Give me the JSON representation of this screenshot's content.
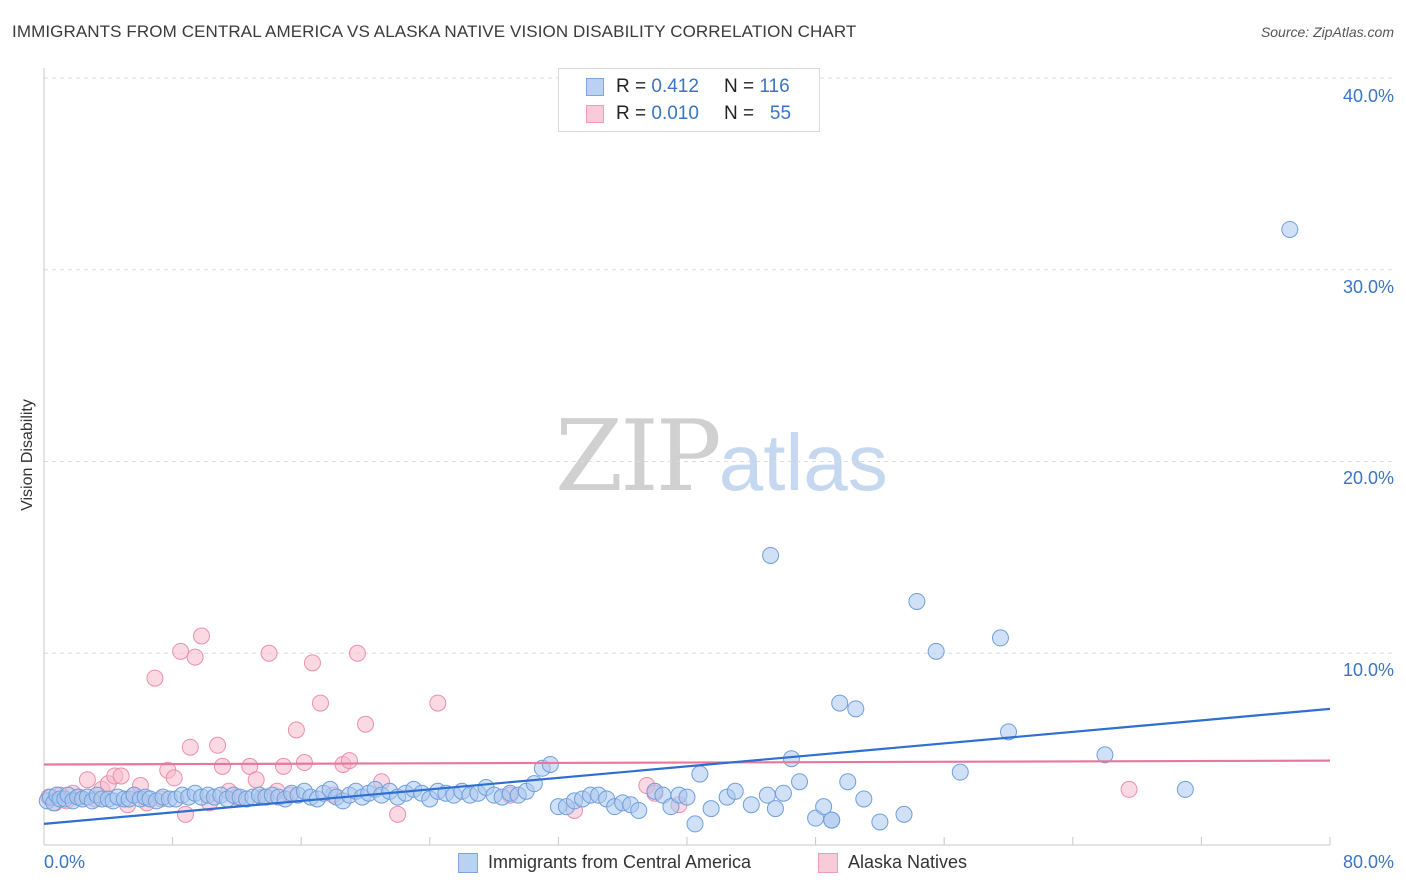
{
  "title": "IMMIGRANTS FROM CENTRAL AMERICA VS ALASKA NATIVE VISION DISABILITY CORRELATION CHART",
  "source": "Source: ZipAtlas.com",
  "watermark": {
    "zip": "ZIP",
    "atlas": "atlas"
  },
  "stats": {
    "row1": {
      "r_label": "R =",
      "r_value": "0.412",
      "n_label": "N =",
      "n_value": "116"
    },
    "row2": {
      "r_label": "R =",
      "r_value": "0.010",
      "n_label": "N =",
      "n_value": "55"
    }
  },
  "legend": {
    "blue": "Immigrants from Central America",
    "pink": "Alaska Natives"
  },
  "colors": {
    "blue_fill": "#a9c6ef",
    "blue_stroke": "#6f9fdc",
    "blue_line": "#2f6fd0",
    "pink_fill": "#f6b9cc",
    "pink_stroke": "#ec8fae",
    "pink_line": "#e8779e",
    "tick_text": "#3a74c4",
    "grid": "#dcdcdc"
  },
  "chart_data": {
    "type": "scatter",
    "xlabel": "",
    "ylabel": "Vision Disability",
    "xlim": [
      0,
      80
    ],
    "ylim": [
      0,
      40
    ],
    "x_tick_labels": [
      "0.0%",
      "80.0%"
    ],
    "y_ticks": [
      10,
      20,
      30,
      40
    ],
    "y_tick_labels": [
      "10.0%",
      "20.0%",
      "30.0%",
      "40.0%"
    ],
    "grid": true,
    "legend_position": "bottom",
    "series": [
      {
        "name": "Immigrants from Central America",
        "color": "#a9c6ef",
        "r": 0.412,
        "n": 116,
        "trend": [
          [
            0,
            1.1
          ],
          [
            80,
            7.1
          ]
        ],
        "points": [
          [
            0.2,
            2.3
          ],
          [
            0.4,
            2.5
          ],
          [
            0.6,
            2.2
          ],
          [
            0.8,
            2.6
          ],
          [
            1.0,
            2.4
          ],
          [
            1.3,
            2.4
          ],
          [
            1.5,
            2.6
          ],
          [
            1.8,
            2.3
          ],
          [
            2.1,
            2.5
          ],
          [
            2.4,
            2.4
          ],
          [
            2.7,
            2.5
          ],
          [
            3.0,
            2.3
          ],
          [
            3.3,
            2.6
          ],
          [
            3.6,
            2.4
          ],
          [
            4.0,
            2.4
          ],
          [
            4.3,
            2.3
          ],
          [
            4.6,
            2.5
          ],
          [
            5.0,
            2.4
          ],
          [
            5.3,
            2.4
          ],
          [
            5.6,
            2.6
          ],
          [
            6.0,
            2.4
          ],
          [
            6.3,
            2.5
          ],
          [
            6.6,
            2.4
          ],
          [
            7.0,
            2.3
          ],
          [
            7.4,
            2.5
          ],
          [
            7.8,
            2.4
          ],
          [
            8.2,
            2.4
          ],
          [
            8.6,
            2.6
          ],
          [
            9.0,
            2.5
          ],
          [
            9.4,
            2.7
          ],
          [
            9.8,
            2.5
          ],
          [
            10.2,
            2.6
          ],
          [
            10.6,
            2.5
          ],
          [
            11.0,
            2.6
          ],
          [
            11.4,
            2.4
          ],
          [
            11.8,
            2.6
          ],
          [
            12.2,
            2.5
          ],
          [
            12.6,
            2.4
          ],
          [
            13.0,
            2.5
          ],
          [
            13.4,
            2.6
          ],
          [
            13.8,
            2.5
          ],
          [
            14.2,
            2.6
          ],
          [
            14.6,
            2.5
          ],
          [
            15.0,
            2.4
          ],
          [
            15.4,
            2.7
          ],
          [
            15.8,
            2.6
          ],
          [
            16.2,
            2.8
          ],
          [
            16.6,
            2.5
          ],
          [
            17.0,
            2.4
          ],
          [
            17.4,
            2.7
          ],
          [
            17.8,
            2.9
          ],
          [
            18.2,
            2.5
          ],
          [
            18.6,
            2.3
          ],
          [
            19.0,
            2.6
          ],
          [
            19.4,
            2.8
          ],
          [
            19.8,
            2.5
          ],
          [
            20.2,
            2.7
          ],
          [
            20.6,
            2.9
          ],
          [
            21.0,
            2.6
          ],
          [
            21.5,
            2.8
          ],
          [
            22.0,
            2.5
          ],
          [
            22.5,
            2.7
          ],
          [
            23.0,
            2.9
          ],
          [
            23.5,
            2.7
          ],
          [
            24.0,
            2.4
          ],
          [
            24.5,
            2.8
          ],
          [
            25.0,
            2.7
          ],
          [
            25.5,
            2.6
          ],
          [
            26.0,
            2.8
          ],
          [
            26.5,
            2.6
          ],
          [
            27.0,
            2.7
          ],
          [
            27.5,
            3.0
          ],
          [
            28.0,
            2.6
          ],
          [
            28.5,
            2.5
          ],
          [
            29.0,
            2.7
          ],
          [
            29.5,
            2.6
          ],
          [
            30.0,
            2.8
          ],
          [
            30.5,
            3.2
          ],
          [
            31.0,
            4.0
          ],
          [
            31.5,
            4.2
          ],
          [
            32.0,
            2.0
          ],
          [
            32.5,
            2.0
          ],
          [
            33.0,
            2.3
          ],
          [
            33.5,
            2.4
          ],
          [
            34.0,
            2.6
          ],
          [
            34.5,
            2.6
          ],
          [
            35.0,
            2.4
          ],
          [
            35.5,
            2.0
          ],
          [
            36.0,
            2.2
          ],
          [
            36.5,
            2.1
          ],
          [
            37.0,
            1.8
          ],
          [
            38.0,
            2.8
          ],
          [
            38.5,
            2.6
          ],
          [
            39.0,
            2.0
          ],
          [
            39.5,
            2.6
          ],
          [
            40.0,
            2.5
          ],
          [
            40.5,
            1.1
          ],
          [
            40.8,
            3.7
          ],
          [
            41.5,
            1.9
          ],
          [
            42.5,
            2.5
          ],
          [
            43.0,
            2.8
          ],
          [
            44.0,
            2.1
          ],
          [
            45.0,
            2.6
          ],
          [
            45.5,
            1.9
          ],
          [
            46.0,
            2.7
          ],
          [
            46.5,
            4.5
          ],
          [
            47.0,
            3.3
          ],
          [
            48.0,
            1.4
          ],
          [
            49.0,
            1.3
          ],
          [
            50.0,
            3.3
          ],
          [
            52.0,
            1.2
          ],
          [
            57.0,
            3.8
          ],
          [
            60.0,
            5.9
          ],
          [
            66.0,
            4.7
          ],
          [
            71.0,
            2.9
          ],
          [
            77.5,
            32.1
          ],
          [
            49.5,
            7.4
          ],
          [
            50.5,
            7.1
          ],
          [
            55.5,
            10.1
          ],
          [
            54.3,
            12.7
          ],
          [
            59.5,
            10.8
          ],
          [
            49.0,
            1.3
          ],
          [
            45.2,
            15.1
          ],
          [
            48.5,
            2.0
          ],
          [
            51.0,
            2.4
          ],
          [
            53.5,
            1.6
          ]
        ]
      },
      {
        "name": "Alaska Natives",
        "color": "#f6b9cc",
        "r": 0.01,
        "n": 55,
        "trend": [
          [
            0,
            4.2
          ],
          [
            80,
            4.4
          ]
        ],
        "points": [
          [
            0.3,
            2.5
          ],
          [
            0.7,
            2.2
          ],
          [
            1.0,
            2.6
          ],
          [
            1.4,
            2.3
          ],
          [
            1.8,
            2.7
          ],
          [
            2.2,
            2.5
          ],
          [
            2.7,
            3.4
          ],
          [
            3.2,
            2.4
          ],
          [
            3.6,
            2.9
          ],
          [
            4.0,
            3.2
          ],
          [
            4.4,
            3.6
          ],
          [
            4.8,
            3.6
          ],
          [
            5.2,
            2.1
          ],
          [
            5.6,
            2.6
          ],
          [
            6.0,
            3.1
          ],
          [
            6.4,
            2.2
          ],
          [
            6.9,
            8.7
          ],
          [
            7.3,
            2.4
          ],
          [
            7.7,
            3.9
          ],
          [
            8.1,
            3.5
          ],
          [
            8.5,
            10.1
          ],
          [
            8.8,
            1.6
          ],
          [
            9.1,
            5.1
          ],
          [
            9.4,
            9.8
          ],
          [
            9.8,
            10.9
          ],
          [
            10.3,
            2.2
          ],
          [
            10.8,
            5.2
          ],
          [
            11.1,
            4.1
          ],
          [
            11.5,
            2.8
          ],
          [
            12.0,
            2.5
          ],
          [
            12.8,
            4.1
          ],
          [
            13.2,
            3.4
          ],
          [
            13.6,
            2.5
          ],
          [
            14.0,
            10.0
          ],
          [
            14.5,
            2.8
          ],
          [
            14.9,
            4.1
          ],
          [
            15.3,
            2.6
          ],
          [
            15.7,
            6.0
          ],
          [
            16.2,
            4.3
          ],
          [
            16.7,
            9.5
          ],
          [
            17.2,
            7.4
          ],
          [
            18.0,
            2.6
          ],
          [
            18.6,
            4.2
          ],
          [
            19.0,
            4.4
          ],
          [
            19.5,
            10.0
          ],
          [
            20.0,
            6.3
          ],
          [
            21.0,
            3.3
          ],
          [
            22.0,
            1.6
          ],
          [
            24.5,
            7.4
          ],
          [
            29.0,
            2.6
          ],
          [
            33.0,
            1.8
          ],
          [
            37.5,
            3.1
          ],
          [
            38.0,
            2.7
          ],
          [
            39.5,
            2.1
          ],
          [
            67.5,
            2.9
          ]
        ]
      }
    ]
  }
}
